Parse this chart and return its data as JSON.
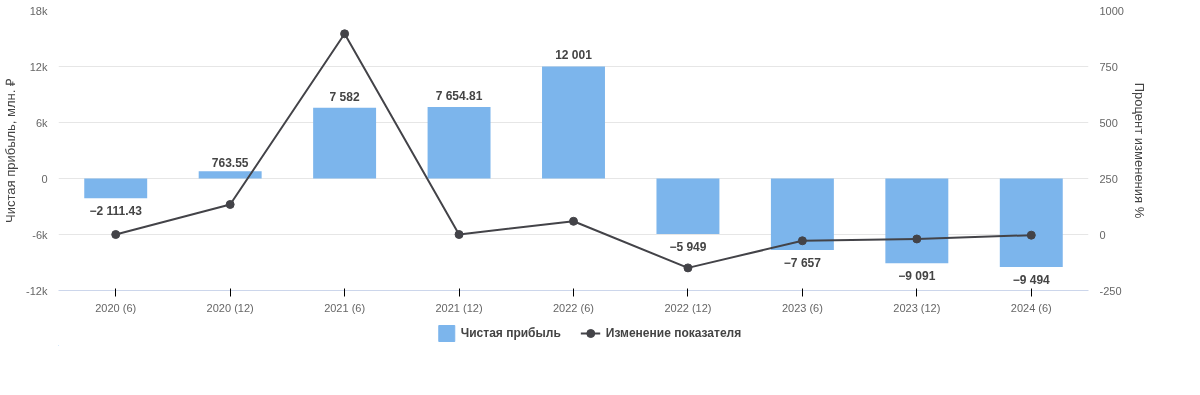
{
  "chart_data": {
    "type": "bar",
    "categories": [
      "2020 (6)",
      "2020 (12)",
      "2021 (6)",
      "2021 (12)",
      "2022 (6)",
      "2022 (12)",
      "2023 (6)",
      "2023 (12)",
      "2024 (6)"
    ],
    "ylabel": "Чистая прибыль, млн. ₽",
    "y2label": "Процент изменения %",
    "ylim": [
      -12000,
      18000
    ],
    "yticks": [
      {
        "value": -12000,
        "label": "-12k"
      },
      {
        "value": -6000,
        "label": "-6k"
      },
      0,
      {
        "value": 6000,
        "label": "6k"
      },
      {
        "value": 12000,
        "label": "12k"
      },
      {
        "value": 18000,
        "label": "18k"
      }
    ],
    "y2lim": [
      -250,
      1000
    ],
    "y2ticks": [
      -250,
      0,
      250,
      500,
      750,
      1000
    ],
    "grid": "y",
    "legend": "bottom",
    "series": [
      {
        "name": "Чистая прибыль",
        "color": "#7cb5ec",
        "values": [
          -2111.43,
          763.55,
          7582,
          7654.81,
          12001,
          -5949,
          -7657,
          -9091,
          -9494
        ],
        "value_labels": [
          "−2 111.43",
          "763.55",
          "7 582",
          "7 654.81",
          "12 001",
          "−5 949",
          "−7 657",
          "−9 091",
          "−9 494"
        ]
      },
      {
        "name": "Изменение показателя",
        "type": "line",
        "axis": "y2",
        "color": "#434348",
        "marker": "circle",
        "values": [
          0,
          134,
          896,
          0,
          59,
          -149,
          -28,
          -20,
          -3
        ]
      }
    ]
  }
}
